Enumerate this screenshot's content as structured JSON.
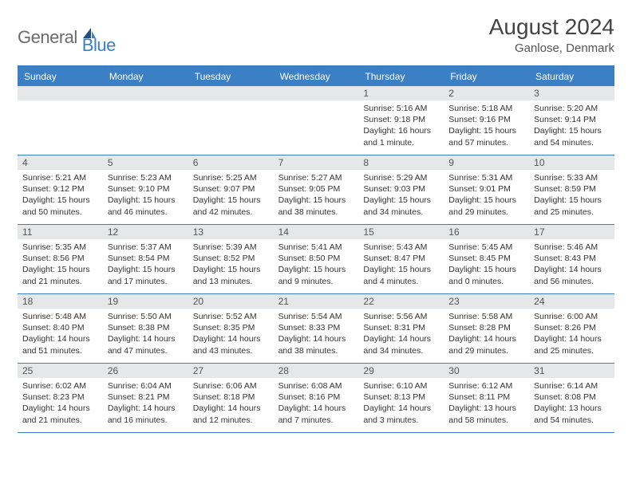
{
  "logo": {
    "general": "General",
    "blue": "Blue"
  },
  "title": "August 2024",
  "location": "Ganlose, Denmark",
  "colors": {
    "accent": "#3b7fc4",
    "header_bg": "#3b7fc4",
    "daynum_bg": "#e5e7e9",
    "text": "#333333",
    "background": "#ffffff"
  },
  "day_headers": [
    "Sunday",
    "Monday",
    "Tuesday",
    "Wednesday",
    "Thursday",
    "Friday",
    "Saturday"
  ],
  "weeks": [
    [
      null,
      null,
      null,
      null,
      {
        "n": "1",
        "sr": "Sunrise: 5:16 AM",
        "ss": "Sunset: 9:18 PM",
        "d1": "Daylight: 16 hours",
        "d2": "and 1 minute."
      },
      {
        "n": "2",
        "sr": "Sunrise: 5:18 AM",
        "ss": "Sunset: 9:16 PM",
        "d1": "Daylight: 15 hours",
        "d2": "and 57 minutes."
      },
      {
        "n": "3",
        "sr": "Sunrise: 5:20 AM",
        "ss": "Sunset: 9:14 PM",
        "d1": "Daylight: 15 hours",
        "d2": "and 54 minutes."
      }
    ],
    [
      {
        "n": "4",
        "sr": "Sunrise: 5:21 AM",
        "ss": "Sunset: 9:12 PM",
        "d1": "Daylight: 15 hours",
        "d2": "and 50 minutes."
      },
      {
        "n": "5",
        "sr": "Sunrise: 5:23 AM",
        "ss": "Sunset: 9:10 PM",
        "d1": "Daylight: 15 hours",
        "d2": "and 46 minutes."
      },
      {
        "n": "6",
        "sr": "Sunrise: 5:25 AM",
        "ss": "Sunset: 9:07 PM",
        "d1": "Daylight: 15 hours",
        "d2": "and 42 minutes."
      },
      {
        "n": "7",
        "sr": "Sunrise: 5:27 AM",
        "ss": "Sunset: 9:05 PM",
        "d1": "Daylight: 15 hours",
        "d2": "and 38 minutes."
      },
      {
        "n": "8",
        "sr": "Sunrise: 5:29 AM",
        "ss": "Sunset: 9:03 PM",
        "d1": "Daylight: 15 hours",
        "d2": "and 34 minutes."
      },
      {
        "n": "9",
        "sr": "Sunrise: 5:31 AM",
        "ss": "Sunset: 9:01 PM",
        "d1": "Daylight: 15 hours",
        "d2": "and 29 minutes."
      },
      {
        "n": "10",
        "sr": "Sunrise: 5:33 AM",
        "ss": "Sunset: 8:59 PM",
        "d1": "Daylight: 15 hours",
        "d2": "and 25 minutes."
      }
    ],
    [
      {
        "n": "11",
        "sr": "Sunrise: 5:35 AM",
        "ss": "Sunset: 8:56 PM",
        "d1": "Daylight: 15 hours",
        "d2": "and 21 minutes."
      },
      {
        "n": "12",
        "sr": "Sunrise: 5:37 AM",
        "ss": "Sunset: 8:54 PM",
        "d1": "Daylight: 15 hours",
        "d2": "and 17 minutes."
      },
      {
        "n": "13",
        "sr": "Sunrise: 5:39 AM",
        "ss": "Sunset: 8:52 PM",
        "d1": "Daylight: 15 hours",
        "d2": "and 13 minutes."
      },
      {
        "n": "14",
        "sr": "Sunrise: 5:41 AM",
        "ss": "Sunset: 8:50 PM",
        "d1": "Daylight: 15 hours",
        "d2": "and 9 minutes."
      },
      {
        "n": "15",
        "sr": "Sunrise: 5:43 AM",
        "ss": "Sunset: 8:47 PM",
        "d1": "Daylight: 15 hours",
        "d2": "and 4 minutes."
      },
      {
        "n": "16",
        "sr": "Sunrise: 5:45 AM",
        "ss": "Sunset: 8:45 PM",
        "d1": "Daylight: 15 hours",
        "d2": "and 0 minutes."
      },
      {
        "n": "17",
        "sr": "Sunrise: 5:46 AM",
        "ss": "Sunset: 8:43 PM",
        "d1": "Daylight: 14 hours",
        "d2": "and 56 minutes."
      }
    ],
    [
      {
        "n": "18",
        "sr": "Sunrise: 5:48 AM",
        "ss": "Sunset: 8:40 PM",
        "d1": "Daylight: 14 hours",
        "d2": "and 51 minutes."
      },
      {
        "n": "19",
        "sr": "Sunrise: 5:50 AM",
        "ss": "Sunset: 8:38 PM",
        "d1": "Daylight: 14 hours",
        "d2": "and 47 minutes."
      },
      {
        "n": "20",
        "sr": "Sunrise: 5:52 AM",
        "ss": "Sunset: 8:35 PM",
        "d1": "Daylight: 14 hours",
        "d2": "and 43 minutes."
      },
      {
        "n": "21",
        "sr": "Sunrise: 5:54 AM",
        "ss": "Sunset: 8:33 PM",
        "d1": "Daylight: 14 hours",
        "d2": "and 38 minutes."
      },
      {
        "n": "22",
        "sr": "Sunrise: 5:56 AM",
        "ss": "Sunset: 8:31 PM",
        "d1": "Daylight: 14 hours",
        "d2": "and 34 minutes."
      },
      {
        "n": "23",
        "sr": "Sunrise: 5:58 AM",
        "ss": "Sunset: 8:28 PM",
        "d1": "Daylight: 14 hours",
        "d2": "and 29 minutes."
      },
      {
        "n": "24",
        "sr": "Sunrise: 6:00 AM",
        "ss": "Sunset: 8:26 PM",
        "d1": "Daylight: 14 hours",
        "d2": "and 25 minutes."
      }
    ],
    [
      {
        "n": "25",
        "sr": "Sunrise: 6:02 AM",
        "ss": "Sunset: 8:23 PM",
        "d1": "Daylight: 14 hours",
        "d2": "and 21 minutes."
      },
      {
        "n": "26",
        "sr": "Sunrise: 6:04 AM",
        "ss": "Sunset: 8:21 PM",
        "d1": "Daylight: 14 hours",
        "d2": "and 16 minutes."
      },
      {
        "n": "27",
        "sr": "Sunrise: 6:06 AM",
        "ss": "Sunset: 8:18 PM",
        "d1": "Daylight: 14 hours",
        "d2": "and 12 minutes."
      },
      {
        "n": "28",
        "sr": "Sunrise: 6:08 AM",
        "ss": "Sunset: 8:16 PM",
        "d1": "Daylight: 14 hours",
        "d2": "and 7 minutes."
      },
      {
        "n": "29",
        "sr": "Sunrise: 6:10 AM",
        "ss": "Sunset: 8:13 PM",
        "d1": "Daylight: 14 hours",
        "d2": "and 3 minutes."
      },
      {
        "n": "30",
        "sr": "Sunrise: 6:12 AM",
        "ss": "Sunset: 8:11 PM",
        "d1": "Daylight: 13 hours",
        "d2": "and 58 minutes."
      },
      {
        "n": "31",
        "sr": "Sunrise: 6:14 AM",
        "ss": "Sunset: 8:08 PM",
        "d1": "Daylight: 13 hours",
        "d2": "and 54 minutes."
      }
    ]
  ]
}
